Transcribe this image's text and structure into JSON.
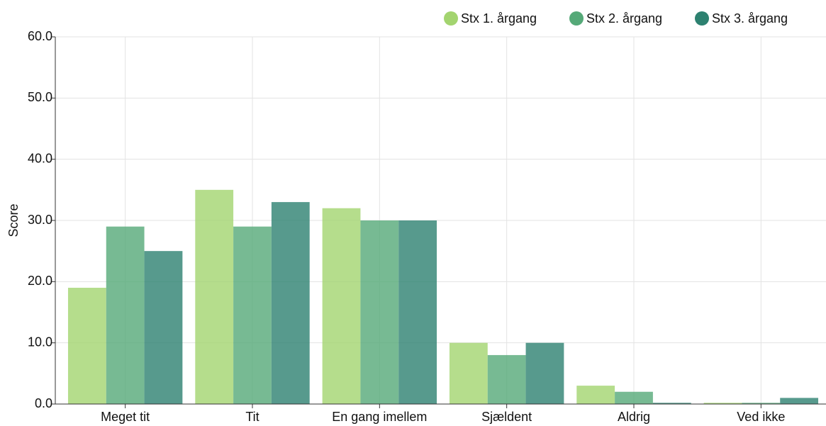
{
  "chart_data": {
    "type": "bar",
    "y_label": "Score",
    "categories": [
      "Meget tit",
      "Tit",
      "En gang imellem",
      "Sjældent",
      "Aldrig",
      "Ved ikke"
    ],
    "series": [
      {
        "name": "Stx 1. årgang",
        "color": "#a3d46f",
        "values": [
          19,
          35,
          32,
          10,
          3,
          0.2
        ]
      },
      {
        "name": "Stx 2. årgang",
        "color": "#55a978",
        "values": [
          29,
          29,
          30,
          8,
          2,
          0.2
        ]
      },
      {
        "name": "Stx 3. årgang",
        "color": "#2d8170",
        "values": [
          25,
          33,
          30,
          10,
          0.2,
          1
        ]
      }
    ],
    "ylim": [
      0,
      60
    ],
    "yticks": [
      {
        "value": 0,
        "label": "0.0"
      },
      {
        "value": 10,
        "label": "10.0"
      },
      {
        "value": 20,
        "label": "20.0"
      },
      {
        "value": 30,
        "label": "30.0"
      },
      {
        "value": 40,
        "label": "40.0"
      },
      {
        "value": 50,
        "label": "50.0"
      },
      {
        "value": 60,
        "label": "60.0"
      }
    ],
    "grid": true,
    "legend": "top-right"
  }
}
